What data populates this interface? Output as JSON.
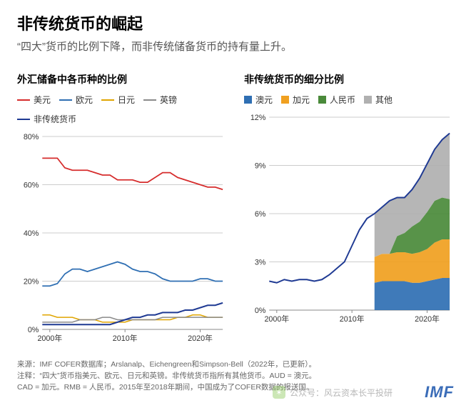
{
  "title": "非传统货币的崛起",
  "subtitle": "“四大”货币的比例下降，而非传统储备货币的持有量上升。",
  "left_panel": {
    "title": "外汇储备中各币种的比例",
    "legend": [
      {
        "label": "美元",
        "color": "#d62c2c"
      },
      {
        "label": "欧元",
        "color": "#2f6fb3"
      },
      {
        "label": "日元",
        "color": "#e0a500"
      },
      {
        "label": "英镑",
        "color": "#8a8a8a"
      },
      {
        "label": "非传统货币",
        "color": "#1f3a93"
      }
    ],
    "type": "line",
    "background_color": "#ffffff",
    "grid_color": "#cccccc",
    "ylim": [
      0,
      80
    ],
    "ytick_step": 20,
    "y_suffix": "%",
    "x_years": [
      1999,
      2000,
      2001,
      2002,
      2003,
      2004,
      2005,
      2006,
      2007,
      2008,
      2009,
      2010,
      2011,
      2012,
      2013,
      2014,
      2015,
      2016,
      2017,
      2018,
      2019,
      2020,
      2021,
      2022,
      2023
    ],
    "x_labels": [
      {
        "x": 2000,
        "t": "2000年"
      },
      {
        "x": 2010,
        "t": "2010年"
      },
      {
        "x": 2020,
        "t": "2020年"
      }
    ],
    "series": {
      "usd": {
        "color": "#d62c2c",
        "width": 1.8,
        "values": [
          71,
          71,
          71,
          67,
          66,
          66,
          66,
          65,
          64,
          64,
          62,
          62,
          62,
          61,
          61,
          63,
          65,
          65,
          63,
          62,
          61,
          60,
          59,
          59,
          58
        ]
      },
      "eur": {
        "color": "#2f6fb3",
        "width": 1.8,
        "values": [
          18,
          18,
          19,
          23,
          25,
          25,
          24,
          25,
          26,
          27,
          28,
          27,
          25,
          24,
          24,
          23,
          21,
          20,
          20,
          20,
          20,
          21,
          21,
          20,
          20
        ]
      },
      "jpy": {
        "color": "#e0a500",
        "width": 1.6,
        "values": [
          6,
          6,
          5,
          5,
          5,
          4,
          4,
          4,
          3,
          3,
          3,
          3,
          4,
          4,
          4,
          4,
          4,
          4,
          5,
          5,
          6,
          6,
          5,
          5,
          5
        ]
      },
      "gbp": {
        "color": "#8a8a8a",
        "width": 1.6,
        "values": [
          3,
          3,
          3,
          3,
          3,
          4,
          4,
          4,
          5,
          5,
          4,
          4,
          4,
          4,
          4,
          4,
          5,
          5,
          5,
          5,
          5,
          5,
          5,
          5,
          5
        ]
      },
      "other": {
        "color": "#1f3a93",
        "width": 2.0,
        "values": [
          2,
          2,
          2,
          2,
          2,
          2,
          2,
          2,
          2,
          2,
          3,
          4,
          5,
          5,
          6,
          6,
          7,
          7,
          7,
          8,
          8,
          9,
          10,
          10,
          11
        ]
      }
    }
  },
  "right_panel": {
    "title": "非传统货币的细分比例",
    "type": "line_plus_stacked",
    "legend": [
      {
        "label": "澳元",
        "color": "#2f6fb3",
        "shape": "sq"
      },
      {
        "label": "加元",
        "color": "#f0a020",
        "shape": "sq"
      },
      {
        "label": "人民币",
        "color": "#4a8a3a",
        "shape": "sq"
      },
      {
        "label": "其他",
        "color": "#b0b0b0",
        "shape": "sq"
      }
    ],
    "ylim": [
      0,
      12
    ],
    "ytick_step": 3,
    "y_suffix": "%",
    "background_color": "#ffffff",
    "grid_color": "#cccccc",
    "x_years": [
      1999,
      2000,
      2001,
      2002,
      2003,
      2004,
      2005,
      2006,
      2007,
      2008,
      2009,
      2010,
      2011,
      2012,
      2013,
      2014,
      2015,
      2016,
      2017,
      2018,
      2019,
      2020,
      2021,
      2022,
      2023
    ],
    "x_labels": [
      {
        "x": 2000,
        "t": "2000年"
      },
      {
        "x": 2010,
        "t": "2010年"
      },
      {
        "x": 2020,
        "t": "2020年"
      }
    ],
    "total_line": {
      "color": "#1f3a93",
      "width": 2.0,
      "values": [
        1.8,
        1.7,
        1.9,
        1.8,
        1.9,
        1.9,
        1.8,
        1.9,
        2.2,
        2.6,
        3.0,
        4.0,
        5.0,
        5.7,
        6.0,
        6.4,
        6.8,
        7.0,
        7.0,
        7.5,
        8.2,
        9.1,
        10.0,
        10.6,
        11.0
      ]
    },
    "stack_start_year": 2013,
    "stack_years": [
      2013,
      2014,
      2015,
      2016,
      2017,
      2018,
      2019,
      2020,
      2021,
      2022,
      2023
    ],
    "stack": {
      "aud": {
        "color": "#2f6fb3",
        "values": [
          1.7,
          1.8,
          1.8,
          1.8,
          1.8,
          1.7,
          1.7,
          1.8,
          1.9,
          2.0,
          2.0
        ]
      },
      "cad": {
        "color": "#f0a020",
        "values": [
          1.6,
          1.7,
          1.7,
          1.8,
          1.8,
          1.8,
          1.9,
          2.0,
          2.3,
          2.4,
          2.4
        ]
      },
      "cny": {
        "color": "#4a8a3a",
        "values": [
          0.0,
          0.0,
          0.0,
          1.0,
          1.2,
          1.7,
          1.9,
          2.3,
          2.6,
          2.6,
          2.5
        ]
      },
      "other": {
        "color": "#b0b0b0",
        "values": [
          2.7,
          2.9,
          3.3,
          2.4,
          2.2,
          2.3,
          2.7,
          3.0,
          3.2,
          3.6,
          4.1
        ]
      }
    }
  },
  "footnotes": [
    "来源：IMF COFER数据库；Arslanalp、Eichengreen和Simpson-Bell（2022年，已更新）。",
    "注释：“四大”货币指美元、欧元、日元和英镑。非传统货币指所有其他货币。AUD = 澳元。",
    "CAD = 加元。RMB = 人民币。2015年至2018年期间，中国成为了COFER数据的报送国。"
  ],
  "brand": "IMF",
  "watermark": {
    "icon_glyph": "✶",
    "text": "公众号：风云资本长平投研"
  }
}
